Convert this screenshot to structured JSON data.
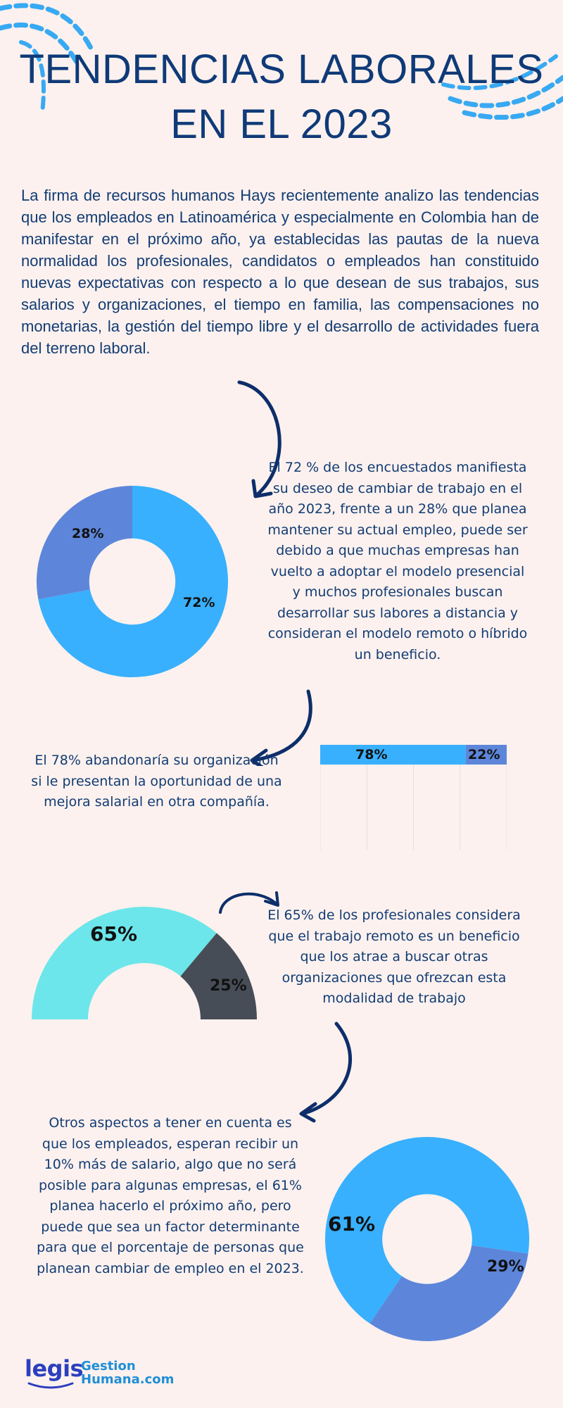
{
  "title": {
    "line1": "TENDENCIAS LABORALES",
    "line2": "EN EL 2023"
  },
  "intro": "La firma de recursos humanos Hays recientemente analizo las tendencias que los empleados en Latinoamérica y especialmente en Colombia han de manifestar en el próximo año, ya establecidas las pautas de la nueva normalidad los profesionales, candidatos o empleados han constituido nuevas expectativas con respecto a lo que desean de sus trabajos, sus salarios y organizaciones, el tiempo en familia, las compensaciones no monetarias, la gestión del tiempo libre y el desarrollo de actividades fuera del terreno laboral.",
  "sections": {
    "s1_text": "El 72 % de los encuestados manifiesta su deseo de cambiar de trabajo en el año 2023, frente a un 28% que planea mantener su actual empleo, puede ser debido a que muchas empresas han vuelto a adoptar el modelo presencial y muchos profesionales buscan desarrollar sus labores a distancia y consideran el modelo remoto o híbrido un beneficio.",
    "s2_text": "El 78% abandonaría su organización si le presentan la oportunidad de una mejora salarial en otra compañía.",
    "s3_text": "El 65% de los profesionales considera que el trabajo remoto es un beneficio que los atrae a buscar otras organizaciones que ofrezcan esta modalidad de trabajo",
    "s4_text": "Otros aspectos a tener en cuenta es que los empleados, esperan recibir un 10% más de salario, algo que no será posible para algunas empresas, el 61% planea hacerlo el próximo año, pero puede que sea un factor determinante para que el porcentaje de personas que planean cambiar de empleo en el 2023."
  },
  "chart_data": [
    {
      "type": "pie",
      "donut": true,
      "values": [
        72,
        28
      ],
      "labels": [
        "72%",
        "28%"
      ],
      "colors": [
        "#38b0fd",
        "#5d86da"
      ]
    },
    {
      "type": "bar",
      "orientation": "horizontal",
      "stacked": true,
      "values": [
        78,
        22
      ],
      "labels": [
        "78%",
        "22%"
      ],
      "colors": [
        "#38b0fd",
        "#5d86da"
      ],
      "grid": true
    },
    {
      "type": "pie",
      "semi_donut": true,
      "values": [
        65,
        25
      ],
      "labels": [
        "65%",
        "25%"
      ],
      "colors": [
        "#6ce6ea",
        "#474d56"
      ]
    },
    {
      "type": "pie",
      "donut": true,
      "values": [
        61,
        29
      ],
      "labels": [
        "61%",
        "29%"
      ],
      "colors": [
        "#38b0fd",
        "#5d86da"
      ]
    }
  ],
  "logo": {
    "brand": "legis",
    "line1": "Gestion",
    "line2": "Humana.com"
  },
  "colors": {
    "background": "#fcf1ee",
    "title": "#0f3a78",
    "accent_blue": "#38b0fd",
    "accent_indigo": "#5d86da",
    "arrow": "#0d2e6a"
  }
}
